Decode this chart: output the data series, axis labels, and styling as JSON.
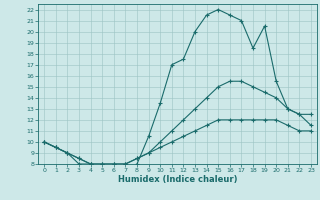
{
  "xlabel": "Humidex (Indice chaleur)",
  "xlim": [
    -0.5,
    23.5
  ],
  "ylim": [
    8,
    22.5
  ],
  "xticks": [
    0,
    1,
    2,
    3,
    4,
    5,
    6,
    7,
    8,
    9,
    10,
    11,
    12,
    13,
    14,
    15,
    16,
    17,
    18,
    19,
    20,
    21,
    22,
    23
  ],
  "yticks": [
    8,
    9,
    10,
    11,
    12,
    13,
    14,
    15,
    16,
    17,
    18,
    19,
    20,
    21,
    22
  ],
  "bg_color": "#cde8e8",
  "line_color": "#1a6b6b",
  "line1_x": [
    0,
    1,
    2,
    3,
    4,
    5,
    6,
    7,
    8,
    9,
    10,
    11,
    12,
    13,
    14,
    15,
    16,
    17,
    18,
    19,
    20,
    21,
    22,
    23
  ],
  "line1_y": [
    10,
    9.5,
    9,
    8,
    8,
    7.5,
    7.5,
    7.5,
    8,
    10.5,
    13.5,
    17,
    17.5,
    20,
    21.5,
    22,
    21.5,
    21,
    18.5,
    20.5,
    15.5,
    13,
    12.5,
    12.5
  ],
  "line2_x": [
    0,
    1,
    2,
    3,
    4,
    5,
    6,
    7,
    8,
    9,
    10,
    11,
    12,
    13,
    14,
    15,
    16,
    17,
    18,
    19,
    20,
    21,
    22,
    23
  ],
  "line2_y": [
    10,
    9.5,
    9,
    8.5,
    8,
    8,
    8,
    8,
    8.5,
    9,
    10,
    11,
    12,
    13,
    14,
    15,
    15.5,
    15.5,
    15,
    14.5,
    14,
    13,
    12.5,
    11.5
  ],
  "line3_x": [
    0,
    1,
    2,
    3,
    4,
    5,
    6,
    7,
    8,
    9,
    10,
    11,
    12,
    13,
    14,
    15,
    16,
    17,
    18,
    19,
    20,
    21,
    22,
    23
  ],
  "line3_y": [
    10,
    9.5,
    9,
    8.5,
    8,
    8,
    8,
    8,
    8.5,
    9,
    9.5,
    10,
    10.5,
    11,
    11.5,
    12,
    12,
    12,
    12,
    12,
    12,
    11.5,
    11,
    11
  ]
}
